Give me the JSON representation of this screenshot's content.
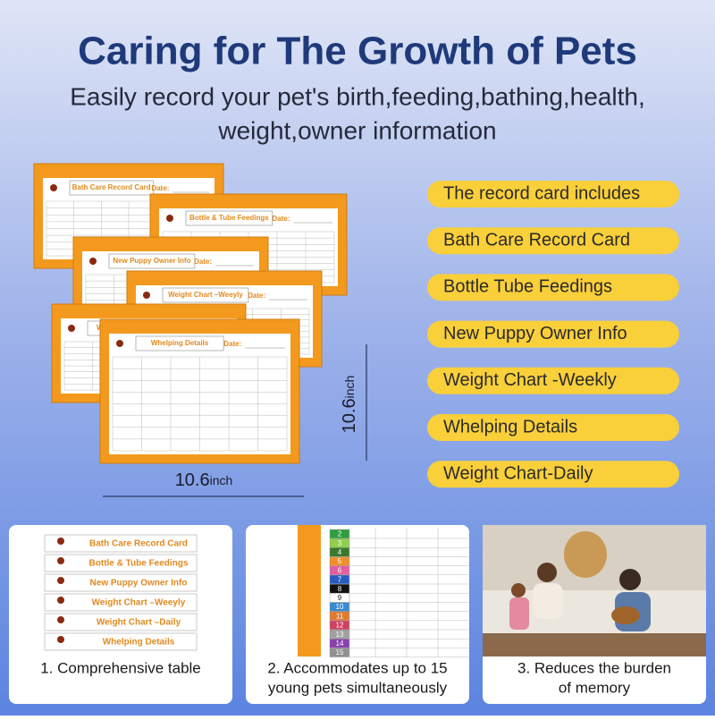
{
  "header": {
    "title": "Caring for The Growth of Pets",
    "subtitle_lines": [
      "Easily record your pet's birth,feeding,bathing,health,",
      "weight,owner information"
    ]
  },
  "cards": {
    "titles": [
      "Bath Care Record Card",
      "Bottle & Tube Feedings",
      "New Puppy Owner Info",
      "Weight Chart –Weeyly",
      "Weight Chart –Daily",
      "Whelping Details"
    ],
    "date_label": "Date:"
  },
  "dimensions": {
    "height": {
      "number": "10.6",
      "unit": "inch"
    },
    "width": {
      "number": "10.6",
      "unit": "inch"
    }
  },
  "features": [
    "The record card includes",
    "Bath Care Record Card",
    "Bottle Tube Feedings",
    "New Puppy Owner Info",
    "Weight Chart -Weekly",
    "Whelping Details",
    "Weight Chart-Daily"
  ],
  "panels": [
    {
      "strips": [
        "Bath Care Record Card",
        "Bottle & Tube Feedings",
        "New Puppy Owner Info",
        "Weight Chart –Weeyly",
        "Weight Chart –Daily",
        "Whelping Details"
      ],
      "caption_lines": [
        "1. Comprehensive table"
      ]
    },
    {
      "rows": [
        {
          "number": 2,
          "color": "#2e9e3e"
        },
        {
          "number": 3,
          "color": "#8fcf4a"
        },
        {
          "number": 4,
          "color": "#3a7a2a"
        },
        {
          "number": 5,
          "color": "#f0902a"
        },
        {
          "number": 6,
          "color": "#e060a0"
        },
        {
          "number": 7,
          "color": "#2a5cc0"
        },
        {
          "number": 8,
          "color": "#111111"
        },
        {
          "number": 9,
          "color": "#ffffff"
        },
        {
          "number": 10,
          "color": "#3a8ad0"
        },
        {
          "number": 11,
          "color": "#e07a30"
        },
        {
          "number": 12,
          "color": "#d04060"
        },
        {
          "number": 13,
          "color": "#a0a0a0"
        },
        {
          "number": 14,
          "color": "#8a40b0"
        },
        {
          "number": 15,
          "color": "#909090"
        }
      ],
      "caption_lines": [
        "2. Accommodates up to 15",
        "young pets simultaneously"
      ]
    },
    {
      "caption_lines": [
        "3. Reduces the burden",
        "of memory"
      ]
    }
  ]
}
